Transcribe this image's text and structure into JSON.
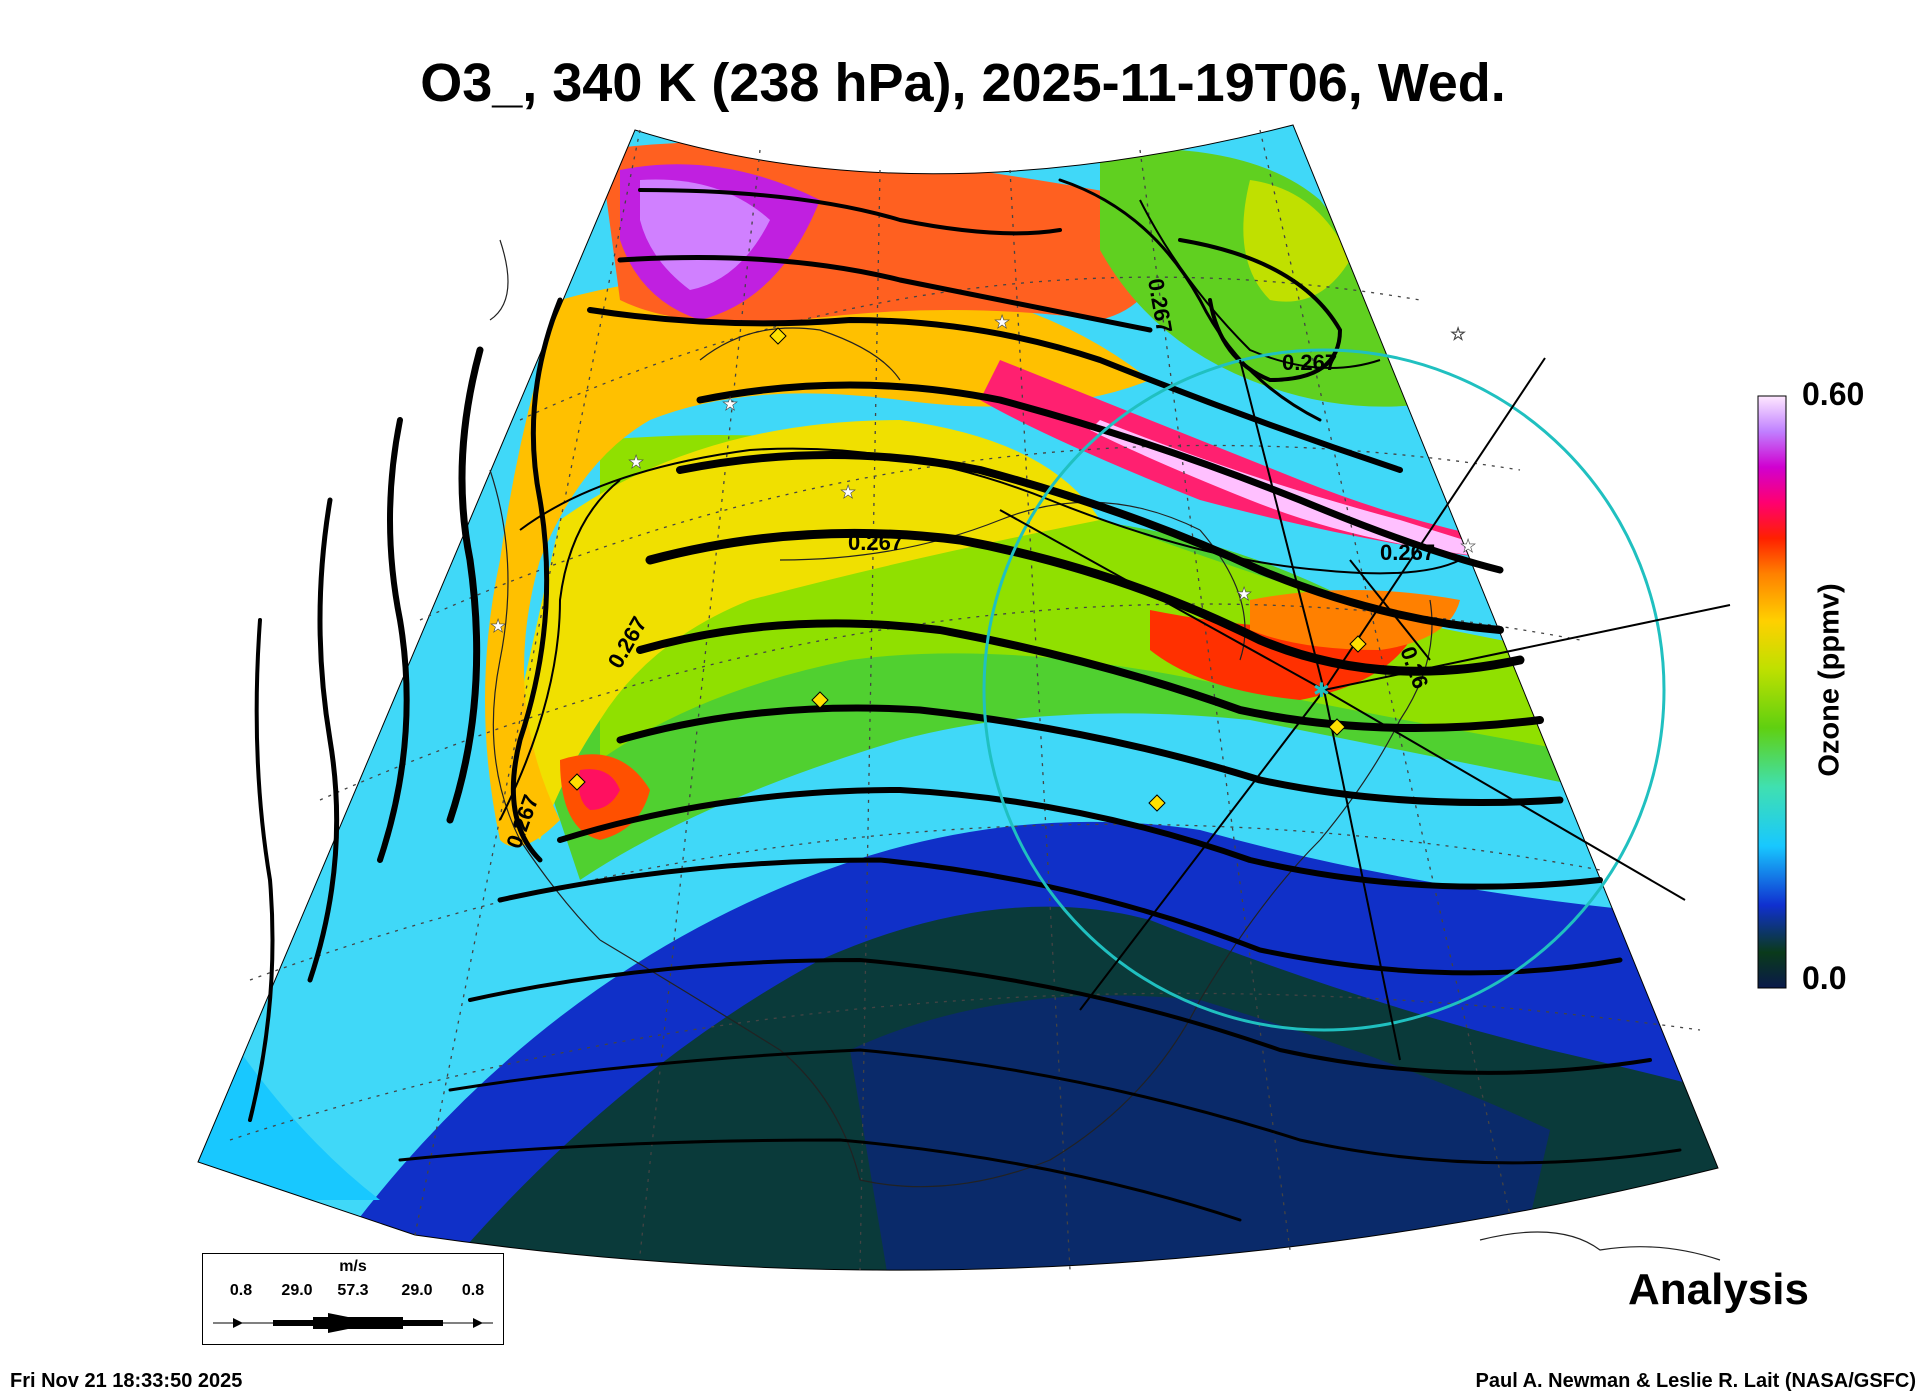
{
  "title": "O3_, 340 K (238 hPa), 2025-11-19T06, Wed.",
  "colorbar": {
    "max_label": "0.60",
    "min_label": "0.0",
    "label": "Ozone (ppmv)",
    "colors": [
      "#1a0033",
      "#0a3a1a",
      "#0a2a6a",
      "#1030d0",
      "#1e6cff",
      "#18c8ff",
      "#40e0d0",
      "#40d070",
      "#5fd010",
      "#a0e000",
      "#e0e000",
      "#ffc000",
      "#ff8000",
      "#ff3000",
      "#ff0060",
      "#e000c0",
      "#c040ff",
      "#e0a0ff",
      "#ffe8ff"
    ]
  },
  "contour_labels": [
    "0.267",
    "0.267",
    "0.267",
    "0.267",
    "0.267",
    "0.267",
    "0.26"
  ],
  "legend": {
    "unit": "m/s",
    "values": [
      "0.8",
      "29.0",
      "57.3",
      "29.0",
      "0.8"
    ]
  },
  "analysis_label": "Analysis",
  "footer": {
    "timestamp": "Fri Nov 21 18:33:50 2025",
    "credit": "Paul A. Newman & Leslie R. Lait (NASA/GSFC)"
  },
  "markers": {
    "diamond_color": "#ffe000",
    "star_color": "#ffffff",
    "circle_color": "#20c0c0"
  }
}
